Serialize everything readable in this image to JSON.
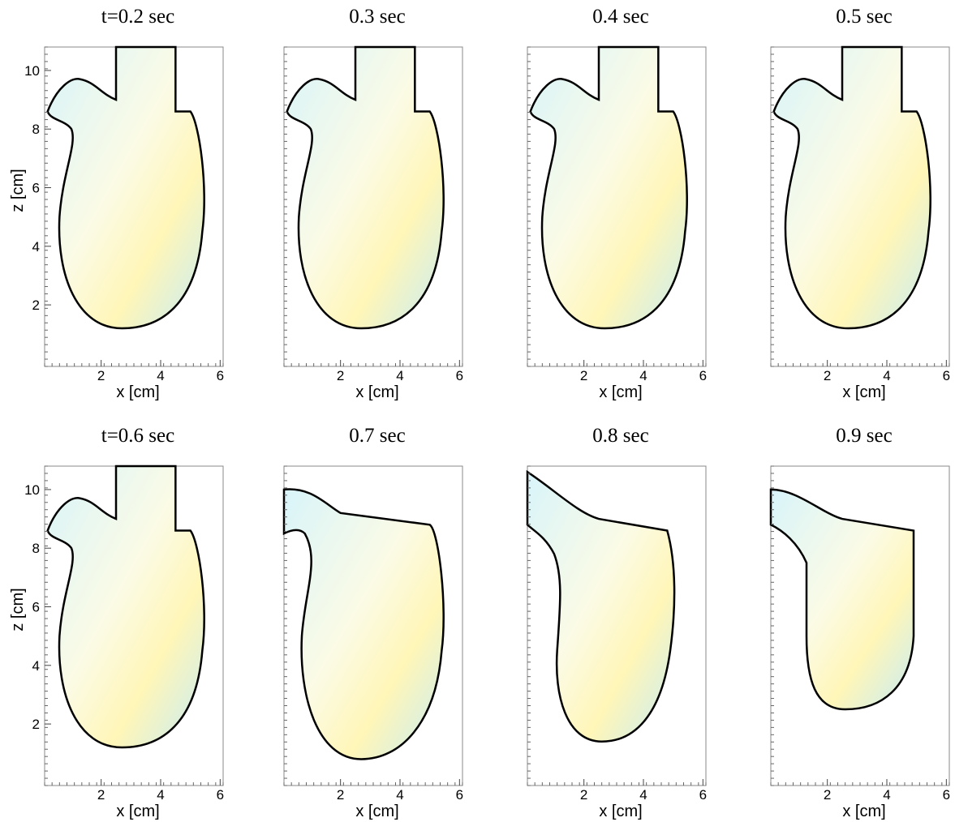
{
  "chart_data": [
    {
      "type": "vector-field",
      "title": "t=0.2 sec",
      "x_label": "x [cm]",
      "y_label": "z [cm]",
      "xlim": [
        0.1,
        6.1
      ],
      "ylim": [
        -0.1,
        10.8
      ],
      "xticks": [
        2,
        4,
        6
      ],
      "yticks": [
        2,
        4,
        6,
        8,
        10
      ]
    },
    {
      "type": "vector-field",
      "title": "0.3 sec",
      "x_label": "x [cm]",
      "xlim": [
        0.1,
        6.1
      ],
      "ylim": [
        -0.1,
        10.8
      ],
      "xticks": [
        2,
        4,
        6
      ]
    },
    {
      "type": "vector-field",
      "title": "0.4 sec",
      "x_label": "x [cm]",
      "xlim": [
        0.1,
        6.1
      ],
      "ylim": [
        -0.1,
        10.8
      ],
      "xticks": [
        2,
        4,
        6
      ]
    },
    {
      "type": "vector-field",
      "title": "0.5 sec",
      "x_label": "x [cm]",
      "xlim": [
        0.1,
        6.1
      ],
      "ylim": [
        -0.1,
        10.8
      ],
      "xticks": [
        2,
        4,
        6
      ]
    },
    {
      "type": "vector-field",
      "title": "t=0.6 sec",
      "x_label": "x [cm]",
      "y_label": "z [cm]",
      "xlim": [
        0.1,
        6.1
      ],
      "ylim": [
        -0.1,
        10.8
      ],
      "xticks": [
        2,
        4,
        6
      ],
      "yticks": [
        2,
        4,
        6,
        8,
        10
      ]
    },
    {
      "type": "vector-field",
      "title": "0.7 sec",
      "x_label": "x [cm]",
      "xlim": [
        0.1,
        6.1
      ],
      "ylim": [
        -0.1,
        10.8
      ],
      "xticks": [
        2,
        4,
        6
      ]
    },
    {
      "type": "vector-field",
      "title": "0.8 sec",
      "x_label": "x [cm]",
      "xlim": [
        0.1,
        6.1
      ],
      "ylim": [
        -0.1,
        10.8
      ],
      "xticks": [
        2,
        4,
        6
      ]
    },
    {
      "type": "vector-field",
      "title": "0.9 sec",
      "x_label": "x [cm]",
      "xlim": [
        0.1,
        6.1
      ],
      "ylim": [
        -0.1,
        10.8
      ],
      "xticks": [
        2,
        4,
        6
      ]
    }
  ]
}
